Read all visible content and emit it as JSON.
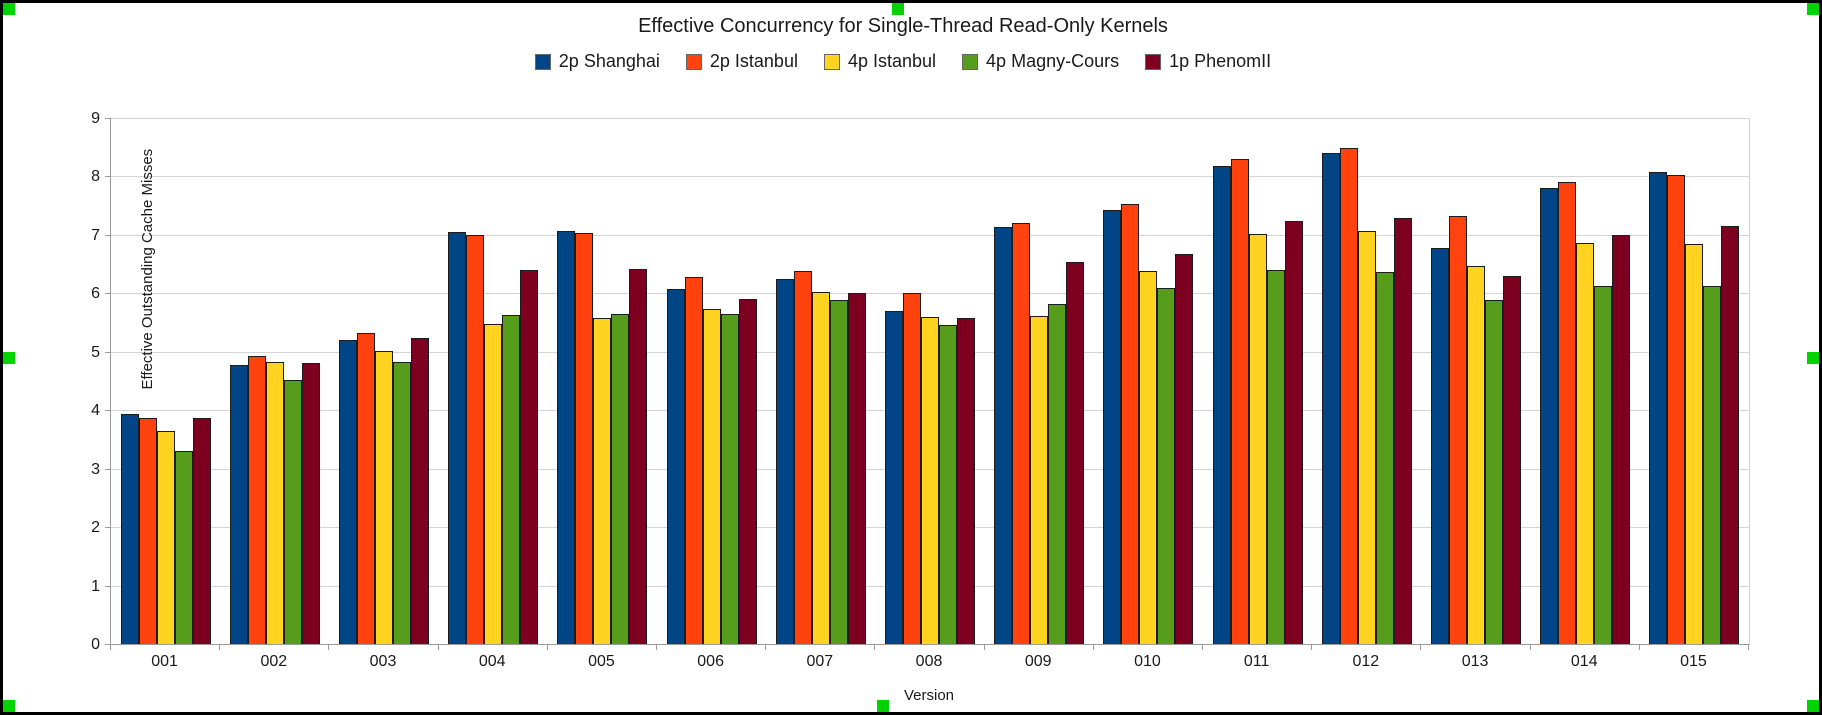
{
  "window": {
    "frame_color": "#000000",
    "selection_handle_color": "#00d400"
  },
  "chart_data": {
    "type": "bar",
    "title": "Effective Concurrency for Single-Thread Read-Only Kernels",
    "xlabel": "Version",
    "ylabel": "Effective Outstanding Cache Misses",
    "ylim": [
      0,
      9
    ],
    "y_ticks": [
      0,
      1,
      2,
      3,
      4,
      5,
      6,
      7,
      8,
      9
    ],
    "grid": true,
    "legend_position": "top",
    "categories": [
      "001",
      "002",
      "003",
      "004",
      "005",
      "006",
      "007",
      "008",
      "009",
      "010",
      "011",
      "012",
      "013",
      "014",
      "015"
    ],
    "series": [
      {
        "name": "2p Shanghai",
        "color": "#004586",
        "values": [
          3.94,
          4.78,
          5.21,
          7.05,
          7.06,
          6.07,
          6.24,
          5.69,
          7.14,
          7.42,
          8.18,
          8.4,
          6.78,
          7.8,
          8.07
        ]
      },
      {
        "name": "2p Istanbul",
        "color": "#FF420E",
        "values": [
          3.87,
          4.92,
          5.32,
          6.99,
          7.03,
          6.28,
          6.39,
          6.0,
          7.21,
          7.53,
          8.3,
          8.48,
          7.32,
          7.91,
          8.02
        ]
      },
      {
        "name": "4p Istanbul",
        "color": "#FFD320",
        "values": [
          3.65,
          4.82,
          5.01,
          5.48,
          5.57,
          5.73,
          6.03,
          5.6,
          5.61,
          6.39,
          7.02,
          7.07,
          6.47,
          6.87,
          6.85
        ]
      },
      {
        "name": "4p Magny-Cours",
        "color": "#579D1C",
        "values": [
          3.3,
          4.52,
          4.83,
          5.63,
          5.65,
          5.64,
          5.89,
          5.45,
          5.81,
          6.1,
          6.4,
          6.36,
          5.89,
          6.13,
          6.13
        ]
      },
      {
        "name": "1p PhenomII",
        "color": "#7E0021",
        "values": [
          3.87,
          4.8,
          5.24,
          6.4,
          6.42,
          5.9,
          6.01,
          5.58,
          6.53,
          6.68,
          7.24,
          7.29,
          6.3,
          7.0,
          7.16
        ]
      }
    ]
  }
}
